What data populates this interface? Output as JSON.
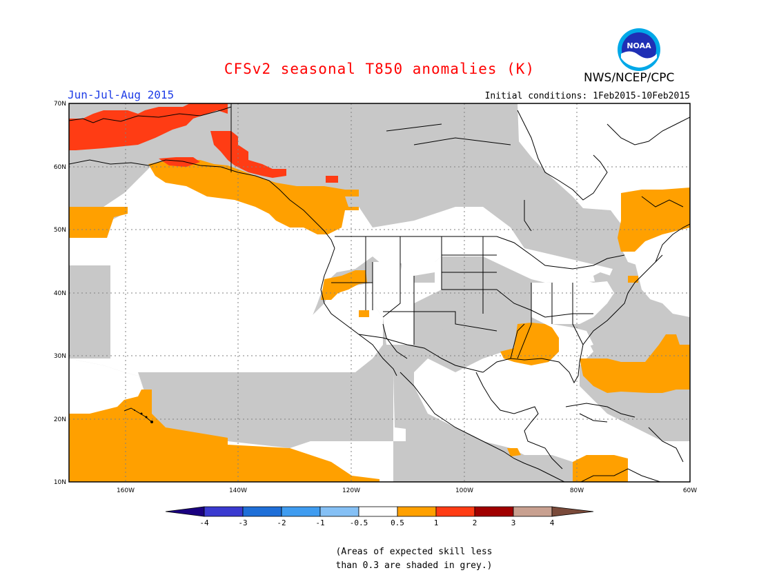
{
  "header": {
    "title": "CFSv2 seasonal T850 anomalies (K)",
    "agency": "NWS/NCEP/CPC",
    "logo_text": "NOAA",
    "period": "Jun-Jul-Aug 2015",
    "initial_conditions": "Initial conditions: 1Feb2015-10Feb2015"
  },
  "colors": {
    "title": "#ff0000",
    "period": "#1e3ce6",
    "skill_mask": "#c8c8c8",
    "orange": "#ffa000",
    "red_orange": "#ff3c14",
    "land_line": "#000000"
  },
  "map": {
    "lat_labels": [
      "70N",
      "60N",
      "50N",
      "40N",
      "30N",
      "20N",
      "10N"
    ],
    "lon_labels": [
      "160W",
      "140W",
      "120W",
      "100W",
      "80W",
      "60W"
    ],
    "lon_range": [
      "170W",
      "60W"
    ],
    "lat_range": [
      "10N",
      "70N"
    ]
  },
  "legend": {
    "tick_labels": [
      "-4",
      "-3",
      "-2",
      "-1",
      "-0.5",
      "0.5",
      "1",
      "2",
      "3",
      "4"
    ],
    "colors": [
      "#1a0080",
      "#3a3ad0",
      "#1f6fd8",
      "#3f9cf0",
      "#85c0f5",
      "#ffffff",
      "#ffa000",
      "#ff3c14",
      "#a00000",
      "#c8a090",
      "#7a4a3a"
    ]
  },
  "footnote": {
    "line1": "(Areas of expected skill less",
    "line2": "than 0.3 are shaded in grey.)"
  }
}
